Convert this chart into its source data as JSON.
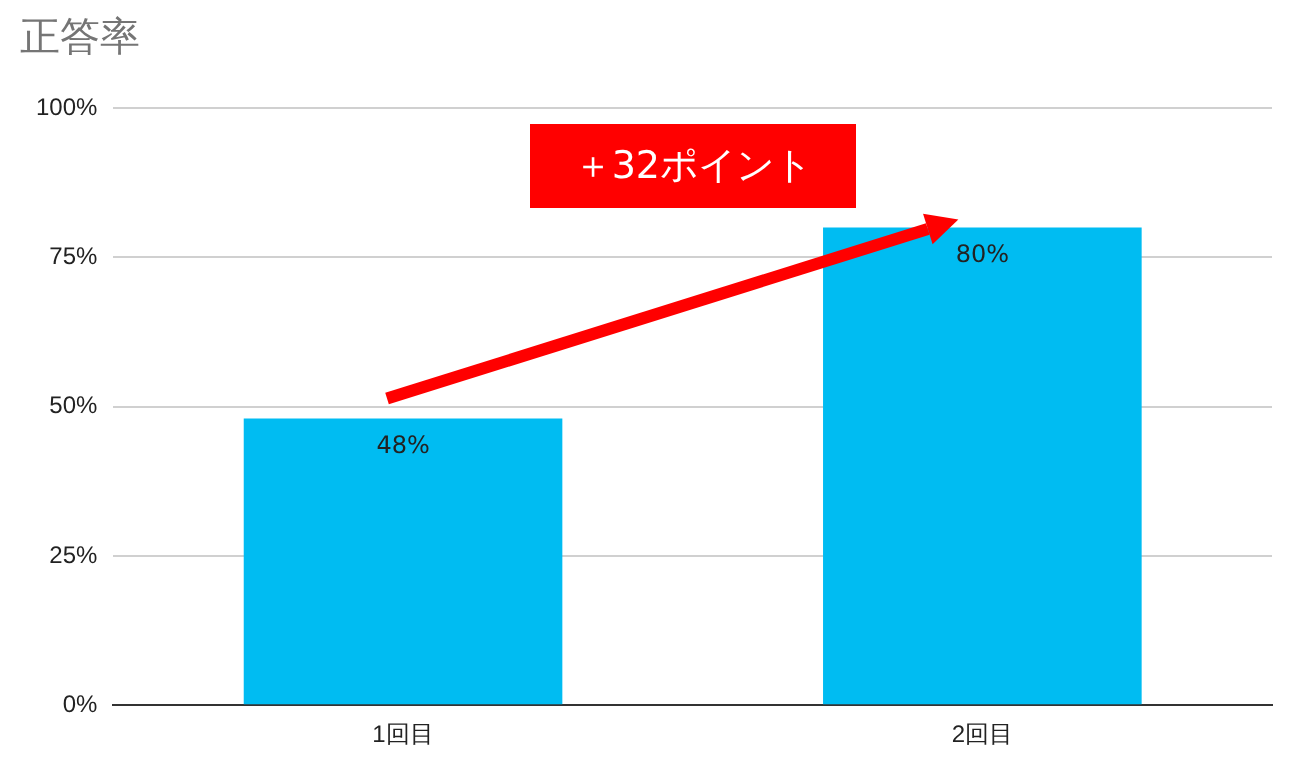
{
  "chart_data": {
    "type": "bar",
    "title": "正答率",
    "categories": [
      "1回目",
      "2回目"
    ],
    "values": [
      48,
      80
    ],
    "color": "#00bcf2",
    "value_labels": [
      "48%",
      "80%"
    ],
    "ylim": [
      0,
      100
    ],
    "yticks": [
      {
        "value": 0,
        "label": "0%"
      },
      {
        "value": 25,
        "label": "25%"
      },
      {
        "value": 50,
        "label": "50%"
      },
      {
        "value": 75,
        "label": "75%"
      },
      {
        "value": 100,
        "label": "100%"
      }
    ],
    "grid": "y",
    "annotations": [
      "＋32ポイント"
    ]
  }
}
